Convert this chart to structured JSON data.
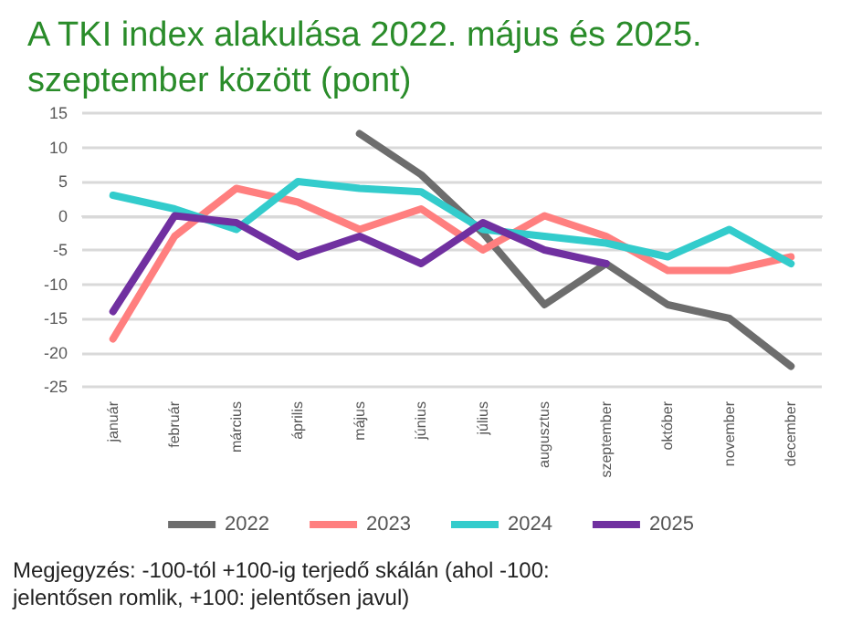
{
  "chart_data": {
    "type": "line",
    "title": "A TKI index alakulása 2022. május és 2025. szeptember között (pont)",
    "categories": [
      "január",
      "február",
      "március",
      "április",
      "május",
      "június",
      "július",
      "augusztus",
      "szeptember",
      "október",
      "november",
      "december"
    ],
    "series": [
      {
        "name": "2022",
        "color": "#6d6d6d",
        "values": [
          null,
          null,
          null,
          null,
          12,
          6,
          -2.5,
          -13,
          -7,
          -13,
          -15,
          -22
        ]
      },
      {
        "name": "2023",
        "color": "#ff7f7f",
        "values": [
          -18,
          -3,
          4,
          2,
          -2,
          1,
          -5,
          0,
          -3,
          -8,
          -8,
          -6
        ]
      },
      {
        "name": "2024",
        "color": "#33cccc",
        "values": [
          3,
          1,
          -2,
          5,
          4,
          3.5,
          -2,
          -3,
          -4,
          -6,
          -2,
          -7
        ]
      },
      {
        "name": "2025",
        "color": "#7030a0",
        "values": [
          -14,
          0,
          -1,
          -6,
          -3,
          -7,
          -1,
          -5,
          -7,
          null,
          null,
          null
        ]
      }
    ],
    "ylim": [
      -25,
      15
    ],
    "yticks": [
      -25,
      -20,
      -15,
      -10,
      -5,
      0,
      5,
      10,
      15
    ],
    "grid": "y",
    "legend": "bottom",
    "marker": "none",
    "line_style": "solid",
    "annotations": [
      "Megjegyzés: -100-tól +100-ig terjedő skálán (ahol -100: jelentősen romlik, +100: jelentősen javul)"
    ]
  }
}
